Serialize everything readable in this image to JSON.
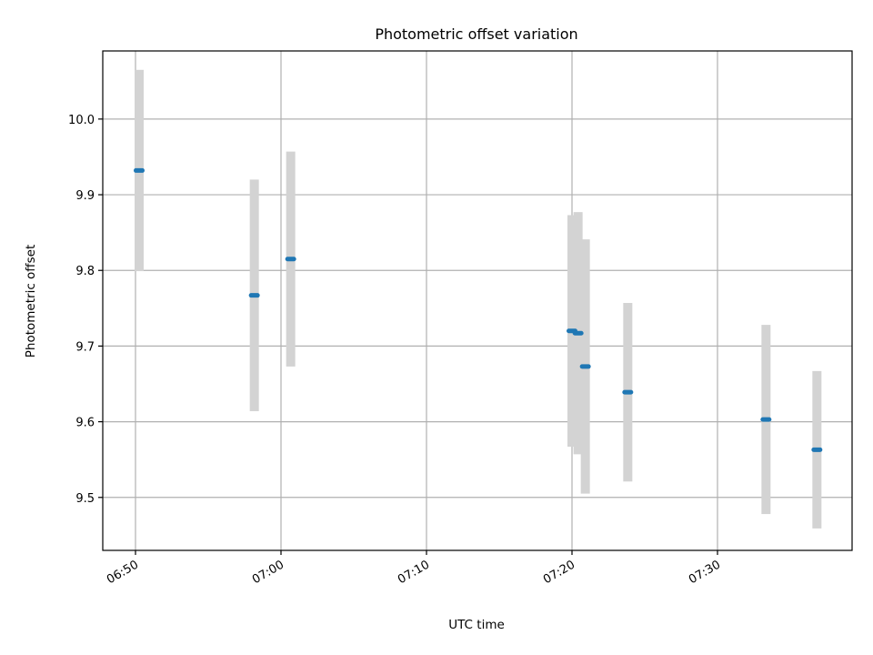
{
  "chart_data": {
    "type": "scatter",
    "title": "Photometric offset variation",
    "xlabel": "UTC time",
    "ylabel": "Photometric offset",
    "x_tick_labels": [
      "06:50",
      "07:00",
      "07:10",
      "07:20",
      "07:30"
    ],
    "y_tick_labels": [
      "9.5",
      "9.6",
      "9.7",
      "9.8",
      "9.9",
      "10.0"
    ],
    "xlim": [
      "06:47:45",
      "07:39:15"
    ],
    "ylim": [
      9.43,
      10.09
    ],
    "grid": true,
    "errorbar_color": "#d3d3d3",
    "marker_color": "#1f77b4",
    "series": [
      {
        "points": [
          {
            "t": "06:50:15",
            "y": 9.932,
            "err": 0.133
          },
          {
            "t": "06:58:10",
            "y": 9.767,
            "err": 0.153
          },
          {
            "t": "07:00:40",
            "y": 9.815,
            "err": 0.142
          },
          {
            "t": "07:20:00",
            "y": 9.72,
            "err": 0.153
          },
          {
            "t": "07:20:25",
            "y": 9.717,
            "err": 0.16
          },
          {
            "t": "07:20:55",
            "y": 9.673,
            "err": 0.168
          },
          {
            "t": "07:23:50",
            "y": 9.639,
            "err": 0.118
          },
          {
            "t": "07:33:20",
            "y": 9.603,
            "err": 0.125
          },
          {
            "t": "07:36:50",
            "y": 9.563,
            "err": 0.104
          }
        ]
      }
    ]
  }
}
